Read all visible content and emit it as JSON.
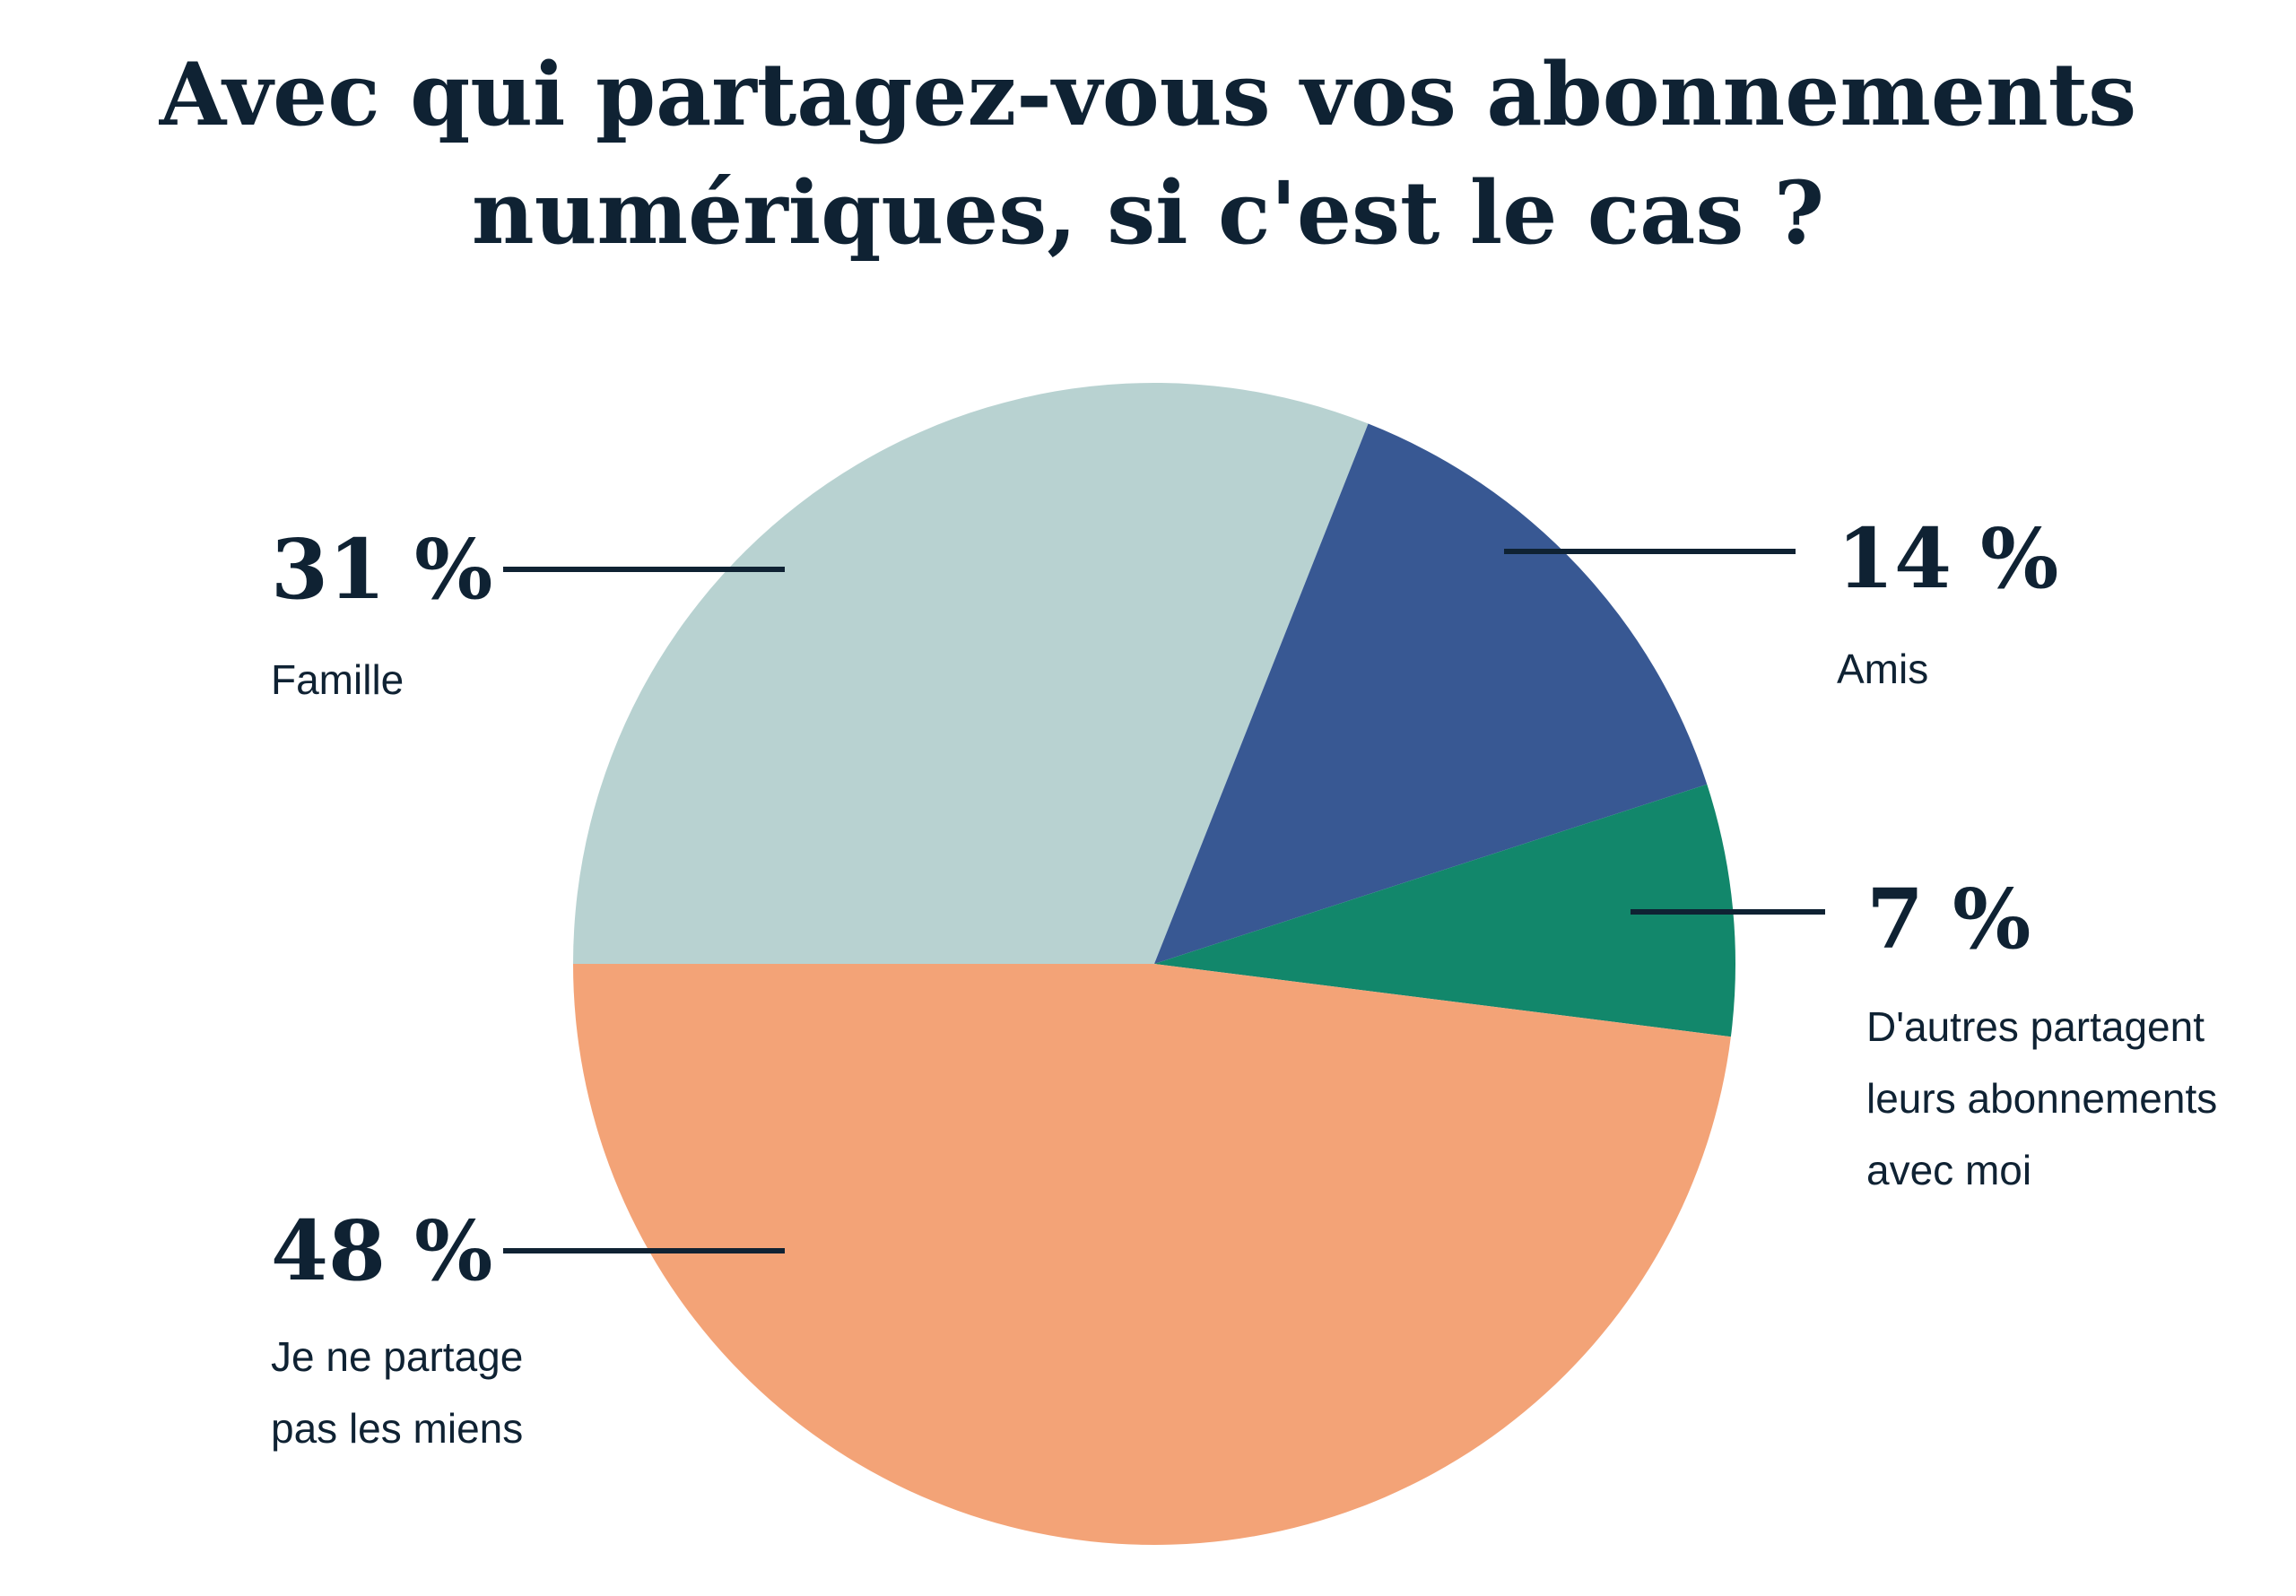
{
  "chart_data": {
    "type": "pie",
    "title": "Avec qui partagez-vous vos abonnements numériques, si c'est le cas ?",
    "categories": [
      "Famille",
      "Amis",
      "D'autres partagent leurs abonnements avec moi",
      "Je ne partage pas les miens"
    ],
    "values": [
      31,
      14,
      7,
      48
    ],
    "value_labels": [
      "31 %",
      "14 %",
      "7 %",
      "48 %"
    ],
    "colors": [
      "#b8d2d1",
      "#385893",
      "#12876b",
      "#f3a377"
    ]
  }
}
